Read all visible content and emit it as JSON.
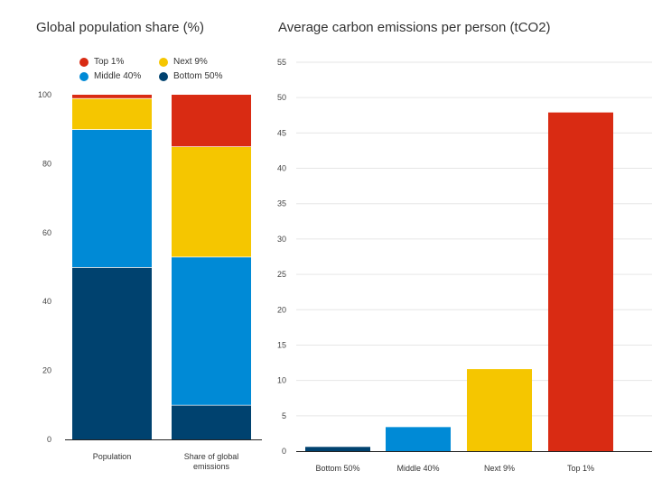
{
  "chart_data": [
    {
      "type": "bar",
      "stacked": true,
      "title": "Global population share (%)",
      "categories": [
        "Population",
        "Share of global emissions"
      ],
      "category_lines": [
        [
          "Population"
        ],
        [
          "Share of global",
          "emissions"
        ]
      ],
      "series": [
        {
          "name": "Bottom 50%",
          "color": "#00426f",
          "values": [
            50,
            10
          ]
        },
        {
          "name": "Middle 40%",
          "color": "#008ad6",
          "values": [
            40,
            43
          ]
        },
        {
          "name": "Next 9%",
          "color": "#f5c600",
          "values": [
            9,
            32
          ]
        },
        {
          "name": "Top 1%",
          "color": "#d92b13",
          "values": [
            1,
            15
          ]
        }
      ],
      "ylim": [
        0,
        100
      ],
      "yticks": [
        0,
        20,
        40,
        60,
        80,
        100
      ],
      "grid": false,
      "legend": "top"
    },
    {
      "type": "bar",
      "title": "Average carbon emissions per person (tCO2)",
      "categories": [
        "Bottom 50%",
        "Middle 40%",
        "Next 9%",
        "Top 1%"
      ],
      "values": [
        0.6,
        3.4,
        11.6,
        47.9
      ],
      "colors": [
        "#00426f",
        "#008ad6",
        "#f5c600",
        "#d92b13"
      ],
      "ylim": [
        0,
        55
      ],
      "yticks": [
        0,
        5,
        10,
        15,
        20,
        25,
        30,
        35,
        40,
        45,
        50,
        55
      ],
      "grid": true
    }
  ],
  "legend": [
    {
      "label": "Top 1%",
      "color": "#d92b13"
    },
    {
      "label": "Next 9%",
      "color": "#f5c600"
    },
    {
      "label": "Middle 40%",
      "color": "#008ad6"
    },
    {
      "label": "Bottom 50%",
      "color": "#00426f"
    }
  ]
}
